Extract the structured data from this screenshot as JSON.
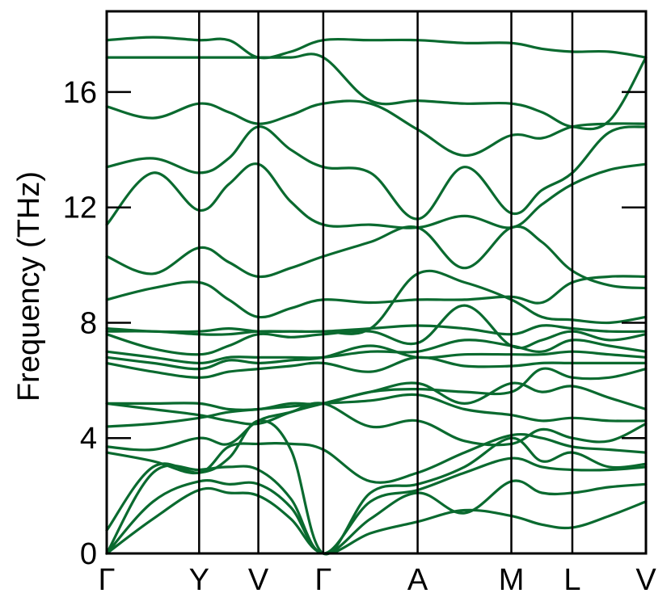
{
  "chart_data": {
    "type": "line",
    "title": "",
    "xlabel": "",
    "ylabel": "Frequency (THz)",
    "ylim": [
      0,
      18.8
    ],
    "yticks": [
      0,
      4,
      8,
      12,
      16
    ],
    "grid": false,
    "legend": "none",
    "line_color": "#0a6a2f",
    "kpoints": [
      {
        "label": "Γ",
        "x": 0
      },
      {
        "label": "Y",
        "x": 0.1714
      },
      {
        "label": "V",
        "x": 0.2812
      },
      {
        "label": "Γ",
        "x": 0.4016
      },
      {
        "label": "A",
        "x": 0.5766
      },
      {
        "label": "M",
        "x": 0.7504
      },
      {
        "label": "L",
        "x": 0.8635
      },
      {
        "label": "V",
        "x": 1.0
      }
    ],
    "x_positions": [
      0,
      0.086,
      0.1714,
      0.2263,
      0.2812,
      0.3414,
      0.4016,
      0.4891,
      0.5766,
      0.6635,
      0.7504,
      0.807,
      0.8635,
      0.9318,
      1.0
    ],
    "series": [
      {
        "values": [
          0,
          1.2,
          2.2,
          2.1,
          2.0,
          1.2,
          0,
          0.7,
          1.1,
          1.5,
          1.3,
          1.0,
          0.9,
          1.3,
          1.8
        ]
      },
      {
        "values": [
          0,
          1.8,
          2.5,
          2.4,
          2.4,
          1.6,
          0,
          1.2,
          2.1,
          1.4,
          2.5,
          2.1,
          2.1,
          2.3,
          2.4
        ]
      },
      {
        "values": [
          0,
          2.8,
          2.9,
          3.0,
          2.9,
          1.9,
          0,
          1.8,
          2.2,
          2.8,
          3.3,
          3.0,
          2.9,
          2.9,
          3.0
        ]
      },
      {
        "values": [
          0.8,
          3.0,
          2.8,
          3.3,
          4.6,
          3.6,
          0,
          2.1,
          2.4,
          3.0,
          4.0,
          3.2,
          3.5,
          3.0,
          3.1
        ]
      },
      {
        "values": [
          3.5,
          3.2,
          2.8,
          3.7,
          3.8,
          3.8,
          3.6,
          2.5,
          2.8,
          3.5,
          4.1,
          4.0,
          3.7,
          3.6,
          3.5
        ]
      },
      {
        "values": [
          3.7,
          3.6,
          4.0,
          3.8,
          4.6,
          4.9,
          5.2,
          4.4,
          4.6,
          3.9,
          3.8,
          4.3,
          4.0,
          3.9,
          4.5
        ]
      },
      {
        "values": [
          4.4,
          4.5,
          4.7,
          4.9,
          5.0,
          5.1,
          5.2,
          5.3,
          5.5,
          5.0,
          4.8,
          4.6,
          4.7,
          4.6,
          4.6
        ]
      },
      {
        "values": [
          5.2,
          5.0,
          4.8,
          4.6,
          4.5,
          4.9,
          5.2,
          5.6,
          5.9,
          5.2,
          5.9,
          5.6,
          5.8,
          5.4,
          5.0
        ]
      },
      {
        "values": [
          5.2,
          5.2,
          5.2,
          5.0,
          5.0,
          5.2,
          5.2,
          5.6,
          5.7,
          5.6,
          5.6,
          6.4,
          6.1,
          6.1,
          6.4
        ]
      },
      {
        "values": [
          6.6,
          6.3,
          6.1,
          6.3,
          6.4,
          6.5,
          6.6,
          6.3,
          6.8,
          6.5,
          6.5,
          6.6,
          6.6,
          6.6,
          6.6
        ]
      },
      {
        "values": [
          6.8,
          6.6,
          6.4,
          6.7,
          6.6,
          6.7,
          6.8,
          7.2,
          6.8,
          6.9,
          6.9,
          6.9,
          7.0,
          6.9,
          6.8
        ]
      },
      {
        "values": [
          7.0,
          6.8,
          6.6,
          6.8,
          6.8,
          6.8,
          6.8,
          7.0,
          7.0,
          7.4,
          7.2,
          7.0,
          7.4,
          7.2,
          7.0
        ]
      },
      {
        "values": [
          7.6,
          7.1,
          6.9,
          7.2,
          7.6,
          7.5,
          7.6,
          7.7,
          7.3,
          8.6,
          7.2,
          7.4,
          7.7,
          7.4,
          7.6
        ]
      },
      {
        "values": [
          7.7,
          7.7,
          7.6,
          7.6,
          7.7,
          7.7,
          7.7,
          7.8,
          7.9,
          7.8,
          7.6,
          7.9,
          7.8,
          7.7,
          7.7
        ]
      },
      {
        "values": [
          7.8,
          7.7,
          7.7,
          7.8,
          7.7,
          7.7,
          7.7,
          7.8,
          9.7,
          9.4,
          8.8,
          8.2,
          8.1,
          8.0,
          8.2
        ]
      },
      {
        "values": [
          8.8,
          9.2,
          9.4,
          8.8,
          8.2,
          8.5,
          8.8,
          8.7,
          8.8,
          8.8,
          8.9,
          8.7,
          9.4,
          9.6,
          9.6
        ]
      },
      {
        "values": [
          10.3,
          9.7,
          10.6,
          10.1,
          9.6,
          9.9,
          10.3,
          10.8,
          11.3,
          9.9,
          11.3,
          10.8,
          9.8,
          9.3,
          9.2
        ]
      },
      {
        "values": [
          11.4,
          13.2,
          11.9,
          12.8,
          13.5,
          12.2,
          11.4,
          11.4,
          11.3,
          11.7,
          11.3,
          12.1,
          12.8,
          13.3,
          13.5
        ]
      },
      {
        "values": [
          13.4,
          13.7,
          13.2,
          13.7,
          14.8,
          14.0,
          13.4,
          13.2,
          11.6,
          13.4,
          11.8,
          12.6,
          13.2,
          14.6,
          14.8
        ]
      },
      {
        "values": [
          15.5,
          15.1,
          15.6,
          15.3,
          14.9,
          15.2,
          15.6,
          15.6,
          14.7,
          13.8,
          14.5,
          14.4,
          14.8,
          14.9,
          14.9
        ]
      },
      {
        "values": [
          17.2,
          17.2,
          17.2,
          17.2,
          17.2,
          17.2,
          17.2,
          15.7,
          15.7,
          15.6,
          15.6,
          15.3,
          14.8,
          15.0,
          17.2
        ]
      },
      {
        "values": [
          17.8,
          17.9,
          17.8,
          17.8,
          17.2,
          17.4,
          17.8,
          17.8,
          17.8,
          17.7,
          17.7,
          17.5,
          17.4,
          17.4,
          17.2
        ]
      }
    ]
  }
}
